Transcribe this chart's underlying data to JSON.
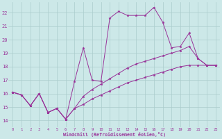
{
  "background_color": "#cce8e8",
  "grid_color": "#aacccc",
  "line_color": "#993399",
  "x_label": "Windchill (Refroidissement éolien,°C)",
  "ylim": [
    13.5,
    22.8
  ],
  "xlim": [
    -0.5,
    23.5
  ],
  "yticks": [
    14,
    15,
    16,
    17,
    18,
    19,
    20,
    21,
    22
  ],
  "xticks": [
    0,
    1,
    2,
    3,
    4,
    5,
    6,
    7,
    8,
    9,
    10,
    11,
    12,
    13,
    14,
    15,
    16,
    17,
    18,
    19,
    20,
    21,
    22,
    23
  ],
  "lines": [
    {
      "x": [
        0,
        1,
        2,
        3,
        4,
        5,
        6,
        7,
        8,
        9,
        10,
        11,
        12,
        13,
        14,
        15,
        16,
        17,
        18,
        19,
        20,
        21,
        22,
        23
      ],
      "y": [
        16.1,
        15.9,
        15.1,
        16.0,
        14.6,
        14.9,
        14.1,
        16.9,
        19.4,
        17.0,
        16.9,
        21.6,
        22.1,
        21.8,
        21.8,
        21.8,
        22.4,
        21.3,
        19.4,
        19.5,
        20.5,
        18.6,
        18.1,
        18.1
      ]
    },
    {
      "x": [
        0,
        1,
        2,
        3,
        4,
        5,
        6,
        7,
        8,
        9,
        10,
        11,
        12,
        13,
        14,
        15,
        16,
        17,
        18,
        19,
        20,
        21,
        22,
        23
      ],
      "y": [
        16.1,
        15.9,
        15.1,
        16.0,
        14.6,
        14.9,
        14.1,
        14.9,
        15.2,
        15.6,
        15.9,
        16.2,
        16.5,
        16.8,
        17.0,
        17.2,
        17.4,
        17.6,
        17.8,
        18.0,
        18.1,
        18.1,
        18.1,
        18.1
      ]
    },
    {
      "x": [
        0,
        1,
        2,
        3,
        4,
        5,
        6,
        7,
        8,
        9,
        10,
        11,
        12,
        13,
        14,
        15,
        16,
        17,
        18,
        19,
        20,
        21,
        22,
        23
      ],
      "y": [
        16.1,
        15.9,
        15.1,
        16.0,
        14.6,
        14.9,
        14.1,
        14.9,
        15.8,
        16.3,
        16.7,
        17.1,
        17.5,
        17.9,
        18.2,
        18.4,
        18.6,
        18.8,
        19.0,
        19.2,
        19.5,
        18.6,
        18.1,
        18.1
      ]
    }
  ]
}
